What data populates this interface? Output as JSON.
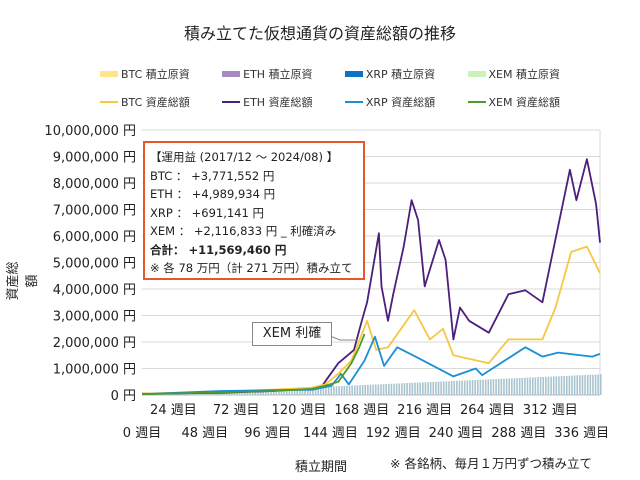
{
  "chart_data": {
    "type": "line",
    "title": "積み立てた仮想通貨の資産総額の推移",
    "xlabel": "積立期間",
    "ylabel": "資産総額",
    "ylim": [
      0,
      10000000
    ],
    "xlim": [
      0,
      350
    ],
    "y_ticks": [
      "0 円",
      "1,000,000 円",
      "2,000,000 円",
      "3,000,000 円",
      "4,000,000 円",
      "5,000,000 円",
      "6,000,000 円",
      "7,000,000 円",
      "8,000,000 円",
      "9,000,000 円",
      "10,000,000 円"
    ],
    "x_ticks_upper": [
      "24 週目",
      "72 週目",
      "120 週目",
      "168 週目",
      "216 週目",
      "264 週目",
      "312 週目"
    ],
    "x_ticks_lower": [
      "0 週目",
      "48 週目",
      "96 週目",
      "144 週目",
      "192 週目",
      "240 週目",
      "288 週目",
      "336 週目"
    ],
    "grid": true,
    "legend_position": "top",
    "legend": {
      "area": [
        "BTC  積立原資",
        "ETH  積立原資",
        "XRP  積立原資",
        "XEM  積立原資"
      ],
      "line": [
        "BTC  資産総額",
        "ETH  資産総額",
        "XRP  資産総額",
        "XEM  資産総額"
      ]
    },
    "principal": {
      "name": "積立原資",
      "x": [
        0,
        350
      ],
      "y": [
        0,
        780000
      ],
      "color": "#a9c4cf"
    },
    "series": [
      {
        "name": "ETH  資産総額",
        "color": "#4b1f7a",
        "x": [
          0,
          60,
          100,
          130,
          137,
          142,
          150,
          162,
          168,
          172,
          181,
          183,
          188,
          192,
          200,
          206,
          211,
          216,
          227,
          232,
          238,
          243,
          250,
          265,
          280,
          293,
          306,
          311,
          327,
          332,
          340,
          347,
          350
        ],
        "y": [
          50000,
          80000,
          150000,
          250000,
          300000,
          650000,
          1200000,
          1700000,
          2800000,
          3500000,
          6100000,
          4100000,
          2800000,
          3800000,
          5600000,
          7350000,
          6600000,
          4100000,
          5850000,
          5100000,
          2100000,
          3300000,
          2800000,
          2350000,
          3800000,
          3950000,
          3500000,
          4700000,
          8500000,
          7350000,
          8900000,
          7200000,
          5750000
        ]
      },
      {
        "name": "BTC  資産総額",
        "color": "#f5c842",
        "x": [
          0,
          60,
          100,
          130,
          140,
          150,
          160,
          172,
          179,
          188,
          208,
          220,
          230,
          238,
          265,
          280,
          306,
          316,
          328,
          340,
          350
        ],
        "y": [
          50000,
          120000,
          200000,
          280000,
          400000,
          800000,
          1300000,
          2800000,
          1700000,
          1800000,
          3200000,
          2100000,
          2500000,
          1500000,
          1200000,
          2100000,
          2100000,
          3300000,
          5400000,
          5600000,
          4600000
        ]
      },
      {
        "name": "XRP  資産総額",
        "color": "#1a8fd6",
        "x": [
          0,
          60,
          100,
          130,
          145,
          152,
          158,
          170,
          178,
          185,
          195,
          211,
          238,
          255,
          260,
          293,
          306,
          318,
          344,
          350
        ],
        "y": [
          30000,
          150000,
          180000,
          200000,
          350000,
          800000,
          400000,
          1300000,
          2200000,
          1100000,
          1800000,
          1400000,
          700000,
          1000000,
          750000,
          1800000,
          1450000,
          1600000,
          1450000,
          1550000
        ]
      },
      {
        "name": "XEM  資産総額",
        "color": "#4e9a2a",
        "x": [
          0,
          60,
          100,
          130,
          140,
          150,
          160,
          166,
          170
        ],
        "y": [
          30000,
          100000,
          150000,
          230000,
          350000,
          500000,
          1200000,
          1800000,
          2300000
        ]
      }
    ]
  },
  "summary": {
    "heading": "【運用益 (2017/12 ～ 2024/08) 】",
    "btc": "BTC  ：  +3,771,552 円",
    "eth": "ETH  ：  +4,989,934 円",
    "xrp": "XRP  ：  +691,141 円",
    "xem": "XEM  ：  +2,116,833 円 _ 利確済み",
    "total": "合計： +11,569,460 円",
    "note": "※ 各 78 万円（計 271 万円）積み立て"
  },
  "callout": "XEM 利確",
  "footnote": "※ 各銘柄、毎月１万円ずつ積み立て",
  "colors": {
    "btc_area": "#fde58a",
    "eth_area": "#a58bbf",
    "xrp_area": "#0e73c4",
    "xem_area": "#c9f3b9",
    "box_border": "#e8562c"
  }
}
